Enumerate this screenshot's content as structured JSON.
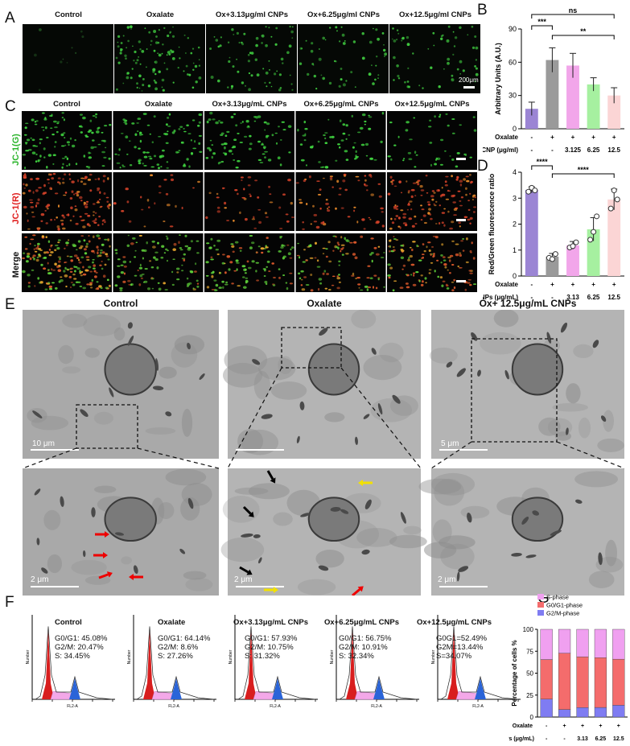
{
  "panels": {
    "A": "A",
    "B": "B",
    "C": "C",
    "D": "D",
    "E": "E",
    "F": "F",
    "G": "G"
  },
  "panelA": {
    "columns": [
      "Control",
      "Oxalate",
      "Ox+3.13μg/ml CNPs",
      "Ox+6.25μg/ml CNPs",
      "Ox+12.5μg/ml CNPs"
    ],
    "scale_bar": "200μm"
  },
  "panelC": {
    "columns": [
      "Control",
      "Oxalate",
      "Ox+3.13μg/mL CNPs",
      "Ox+6.25μg/mL CNPs",
      "Ox+12.5μg/mL CNPs"
    ],
    "rows": [
      "JC-1(G)",
      "JC-1(R)",
      "Merge"
    ],
    "row_colors": [
      "#2db52d",
      "#e02020",
      "#111111"
    ]
  },
  "panelE": {
    "titles": [
      "Control",
      "Oxalate",
      "Ox+ 12.5μg/mL CNPs"
    ],
    "scale_top": [
      "10 μm",
      "",
      "5 μm"
    ],
    "scale_bottom": [
      "2 μm",
      "2 μm",
      "2 μm"
    ]
  },
  "panelF": {
    "titles": [
      "Control",
      "Oxalate",
      "Ox+3.13μg/mL CNPs",
      "Ox+6.25μg/mL CNPs",
      "Ox+12.5μg/mL CNPs"
    ],
    "stats": [
      [
        "G0/G1: 45.08%",
        "G2/M: 20.47%",
        "S: 34.45%"
      ],
      [
        "G0/G1: 64.14%",
        "G2/M: 8.6%",
        "S: 27.26%"
      ],
      [
        "G0/G1: 57.93%",
        "G2/M: 10.75%",
        "S: 31.32%"
      ],
      [
        "G0/G1: 56.75%",
        "G2/M: 10.91%",
        "S: 32.34%"
      ],
      [
        "G0G1=52.49%",
        "G2M=13.44%",
        "S=34.07%"
      ]
    ],
    "xaxis_label": "FL2-A",
    "yaxis_label": "Number"
  },
  "chart_data": [
    {
      "type": "bar",
      "id": "B",
      "ylabel": "Arbitrary Units (A.U.)",
      "ylim": [
        0,
        90
      ],
      "yticks": [
        0,
        30,
        60,
        90
      ],
      "values": [
        18,
        62,
        57,
        40,
        30
      ],
      "errors": [
        6,
        11,
        11,
        6,
        7
      ],
      "colors": [
        "#9b85d4",
        "#9a9a9a",
        "#f2a6ea",
        "#a6f0a0",
        "#fbd5d5"
      ],
      "rows": [
        {
          "label": "Oxalate",
          "values": [
            "-",
            "+",
            "+",
            "+",
            "+"
          ]
        },
        {
          "label": "CNP (μg/ml)",
          "values": [
            "-",
            "-",
            "3.125",
            "6.25",
            "12.5"
          ]
        }
      ],
      "sig": [
        {
          "from": 0,
          "to": 4,
          "label": "ns"
        },
        {
          "from": 0,
          "to": 1,
          "label": "***"
        },
        {
          "from": 1,
          "to": 4,
          "label": "**"
        }
      ]
    },
    {
      "type": "bar",
      "id": "D",
      "ylabel": "Red/Green fluorescence ratio",
      "ylim": [
        0,
        4
      ],
      "yticks": [
        0,
        1,
        2,
        3,
        4
      ],
      "values": [
        3.32,
        0.75,
        1.18,
        1.8,
        2.95
      ],
      "errors": [
        0.12,
        0.12,
        0.15,
        0.45,
        0.4
      ],
      "points": [
        [
          3.25,
          3.4,
          3.3
        ],
        [
          0.7,
          0.65,
          0.85
        ],
        [
          1.1,
          1.15,
          1.3
        ],
        [
          1.4,
          1.7,
          2.3
        ],
        [
          2.6,
          3.3,
          2.95
        ]
      ],
      "colors": [
        "#9b85d4",
        "#9a9a9a",
        "#f2a6ea",
        "#a6f0a0",
        "#fbd5d5"
      ],
      "rows": [
        {
          "label": "Oxalate",
          "values": [
            "-",
            "+",
            "+",
            "+",
            "+"
          ]
        },
        {
          "label": "CNPs (μg/mL)",
          "values": [
            "-",
            "-",
            "3.13",
            "6.25",
            "12.5"
          ]
        }
      ],
      "sig": [
        {
          "from": 0,
          "to": 1,
          "label": "****"
        },
        {
          "from": 1,
          "to": 4,
          "label": "****"
        }
      ]
    },
    {
      "type": "bar",
      "id": "G",
      "stacked": true,
      "ylabel": "Percentage of cells %",
      "ylim": [
        0,
        100
      ],
      "yticks": [
        0,
        25,
        50,
        75,
        100
      ],
      "legend": [
        "S-phase",
        "G0/G1-phase",
        "G2/M-phase"
      ],
      "series": [
        {
          "name": "G2/M-phase",
          "values": [
            20.47,
            8.6,
            10.75,
            10.91,
            13.44
          ],
          "color": "#7f7cf2"
        },
        {
          "name": "G0/G1-phase",
          "values": [
            45.08,
            64.14,
            57.93,
            56.75,
            52.49
          ],
          "color": "#f46c6c"
        },
        {
          "name": "S-phase",
          "values": [
            34.45,
            27.26,
            31.32,
            32.34,
            34.07
          ],
          "color": "#f0a0f0"
        }
      ],
      "rows": [
        {
          "label": "Oxalate",
          "values": [
            "-",
            "+",
            "+",
            "+",
            "+"
          ]
        },
        {
          "label": "CNPs (μg/mL)",
          "values": [
            "-",
            "-",
            "3.13",
            "6.25",
            "12.5"
          ]
        }
      ]
    }
  ]
}
